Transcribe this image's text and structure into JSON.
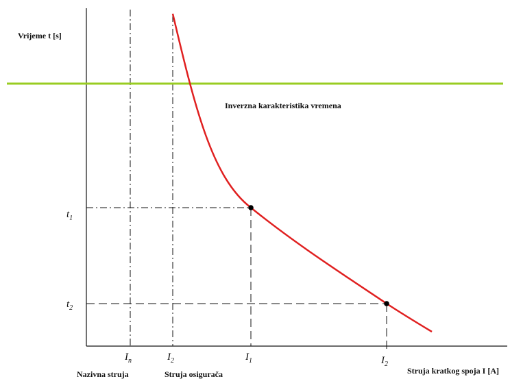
{
  "y_axis_label": "Vrijeme t [s]",
  "x_axis_label": "Struja kratkog spoja I [A]",
  "curve_label": "Inverzna karakteristika vremena",
  "t1": {
    "base": "t",
    "sub": "1"
  },
  "t2": {
    "base": "t",
    "sub": "2"
  },
  "In": {
    "base": "I",
    "sub": "n"
  },
  "I2_left": {
    "base": "I",
    "sub": "2"
  },
  "I1": {
    "base": "I",
    "sub": "1"
  },
  "I2_right": {
    "base": "I",
    "sub": "2"
  },
  "nazivna_label": "Nazivna struja",
  "osiguraca_label": "Struja osigurača",
  "colors": {
    "curve": "#e02020",
    "horizontal_line": "#99cc22",
    "axes": "#111111"
  }
}
